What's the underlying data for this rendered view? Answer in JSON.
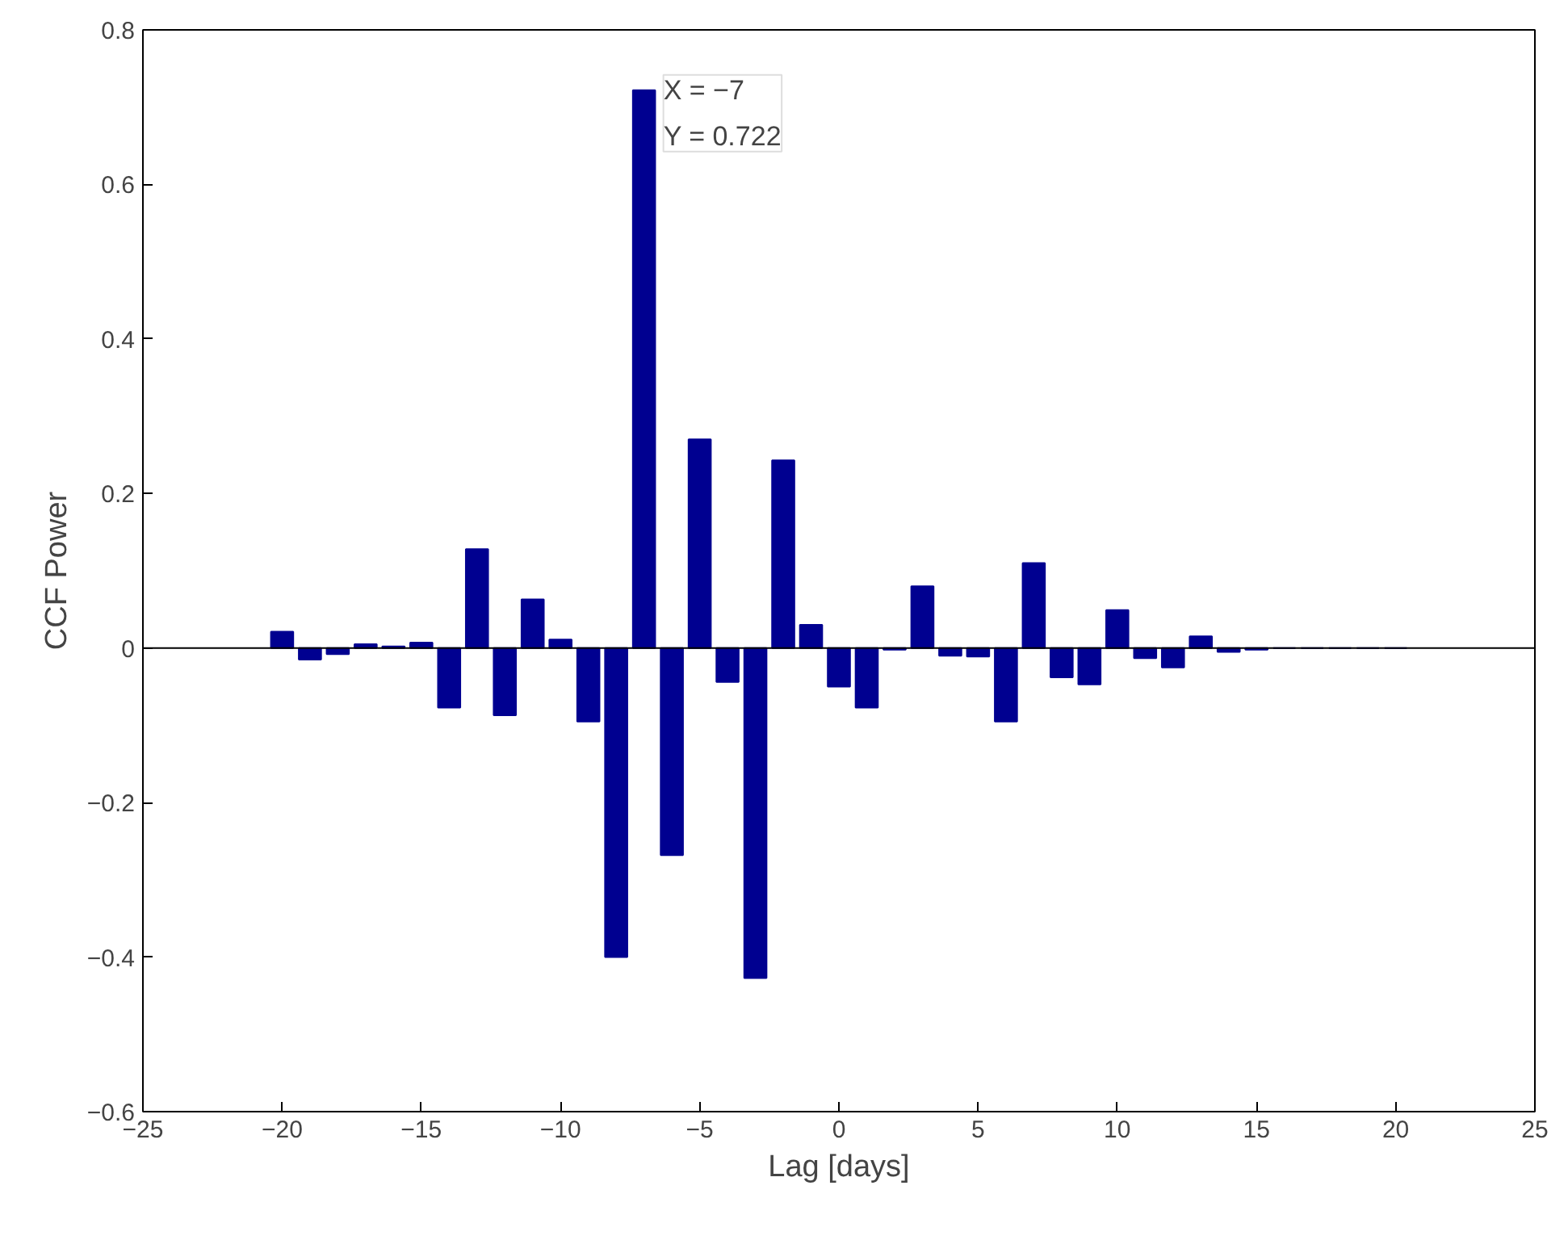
{
  "chart_data": {
    "type": "bar",
    "xlabel": "Lag [days]",
    "ylabel": "CCF Power",
    "x": [
      -20,
      -19,
      -18,
      -17,
      -16,
      -15,
      -14,
      -13,
      -12,
      -11,
      -10,
      -9,
      -8,
      -7,
      -6,
      -5,
      -4,
      -3,
      -2,
      -1,
      0,
      1,
      2,
      3,
      4,
      5,
      6,
      7,
      8,
      9,
      10,
      11,
      12,
      13,
      14,
      15,
      16,
      17,
      18,
      19,
      20
    ],
    "values": [
      0.021,
      -0.015,
      -0.008,
      0.005,
      0.002,
      0.007,
      -0.077,
      0.128,
      -0.087,
      0.063,
      0.011,
      -0.095,
      -0.4,
      0.722,
      -0.268,
      0.27,
      -0.044,
      -0.427,
      0.243,
      0.03,
      -0.05,
      -0.077,
      -0.002,
      0.08,
      -0.01,
      -0.011,
      -0.095,
      0.11,
      -0.038,
      -0.047,
      0.049,
      -0.013,
      -0.025,
      0.015,
      -0.005,
      -0.002,
      0,
      0,
      0,
      0,
      0
    ],
    "color": "#000090",
    "xlim": [
      -25,
      25
    ],
    "xticks": [
      -25,
      -20,
      -15,
      -10,
      -5,
      0,
      5,
      10,
      15,
      20,
      25
    ],
    "ylim": [
      -0.6,
      0.8
    ],
    "yticks": [
      -0.6,
      -0.4,
      -0.2,
      0,
      0.2,
      0.4,
      0.6,
      0.8
    ],
    "ref_lines": [
      {
        "axis": "y",
        "value": 0,
        "label": null,
        "color": "#000000"
      }
    ],
    "annotations": [
      {
        "text": "X = −7\nY = 0.722",
        "x": -7,
        "y": 0.722
      }
    ],
    "grid": false
  }
}
